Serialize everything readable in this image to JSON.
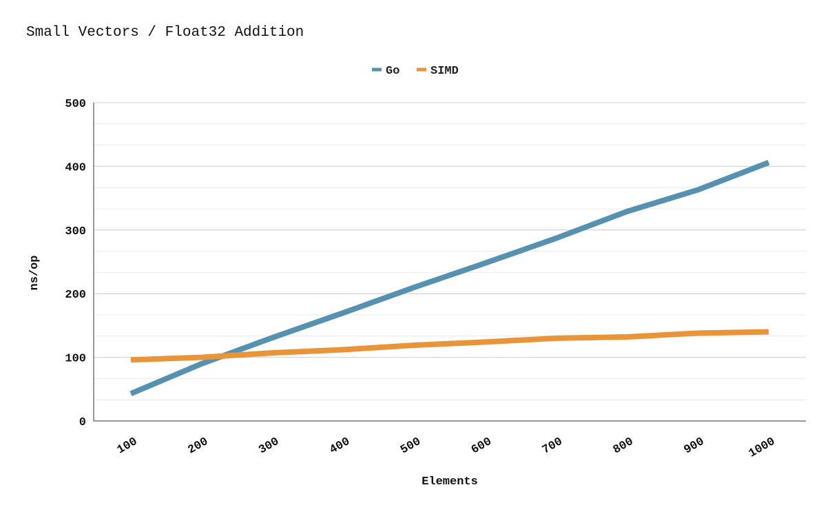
{
  "colors": {
    "go": "#5591b0",
    "simd": "#ea943a",
    "grid": "#d0d0d0",
    "minor_grid": "#e8e8e8",
    "axis": "#333333"
  },
  "chart_data": {
    "type": "line",
    "title": "Small Vectors / Float32 Addition",
    "xlabel": "Elements",
    "ylabel": "ns/op",
    "categories": [
      "100",
      "200",
      "300",
      "400",
      "500",
      "600",
      "700",
      "800",
      "900",
      "1000"
    ],
    "ylim": [
      0,
      500
    ],
    "y_ticks": [
      0,
      100,
      200,
      300,
      400,
      500
    ],
    "y_tick_labels": [
      "0",
      "100",
      "200",
      "300",
      "400",
      "500"
    ],
    "y_minor_step": 33.333,
    "legend_position": "top-center",
    "grid": true,
    "series": [
      {
        "name": "Go",
        "color_key": "go",
        "values": [
          43,
          90,
          131,
          170,
          210,
          248,
          287,
          329,
          363,
          406
        ]
      },
      {
        "name": "SIMD",
        "color_key": "simd",
        "values": [
          96,
          100,
          107,
          112,
          119,
          124,
          130,
          132,
          138,
          140
        ]
      }
    ]
  }
}
